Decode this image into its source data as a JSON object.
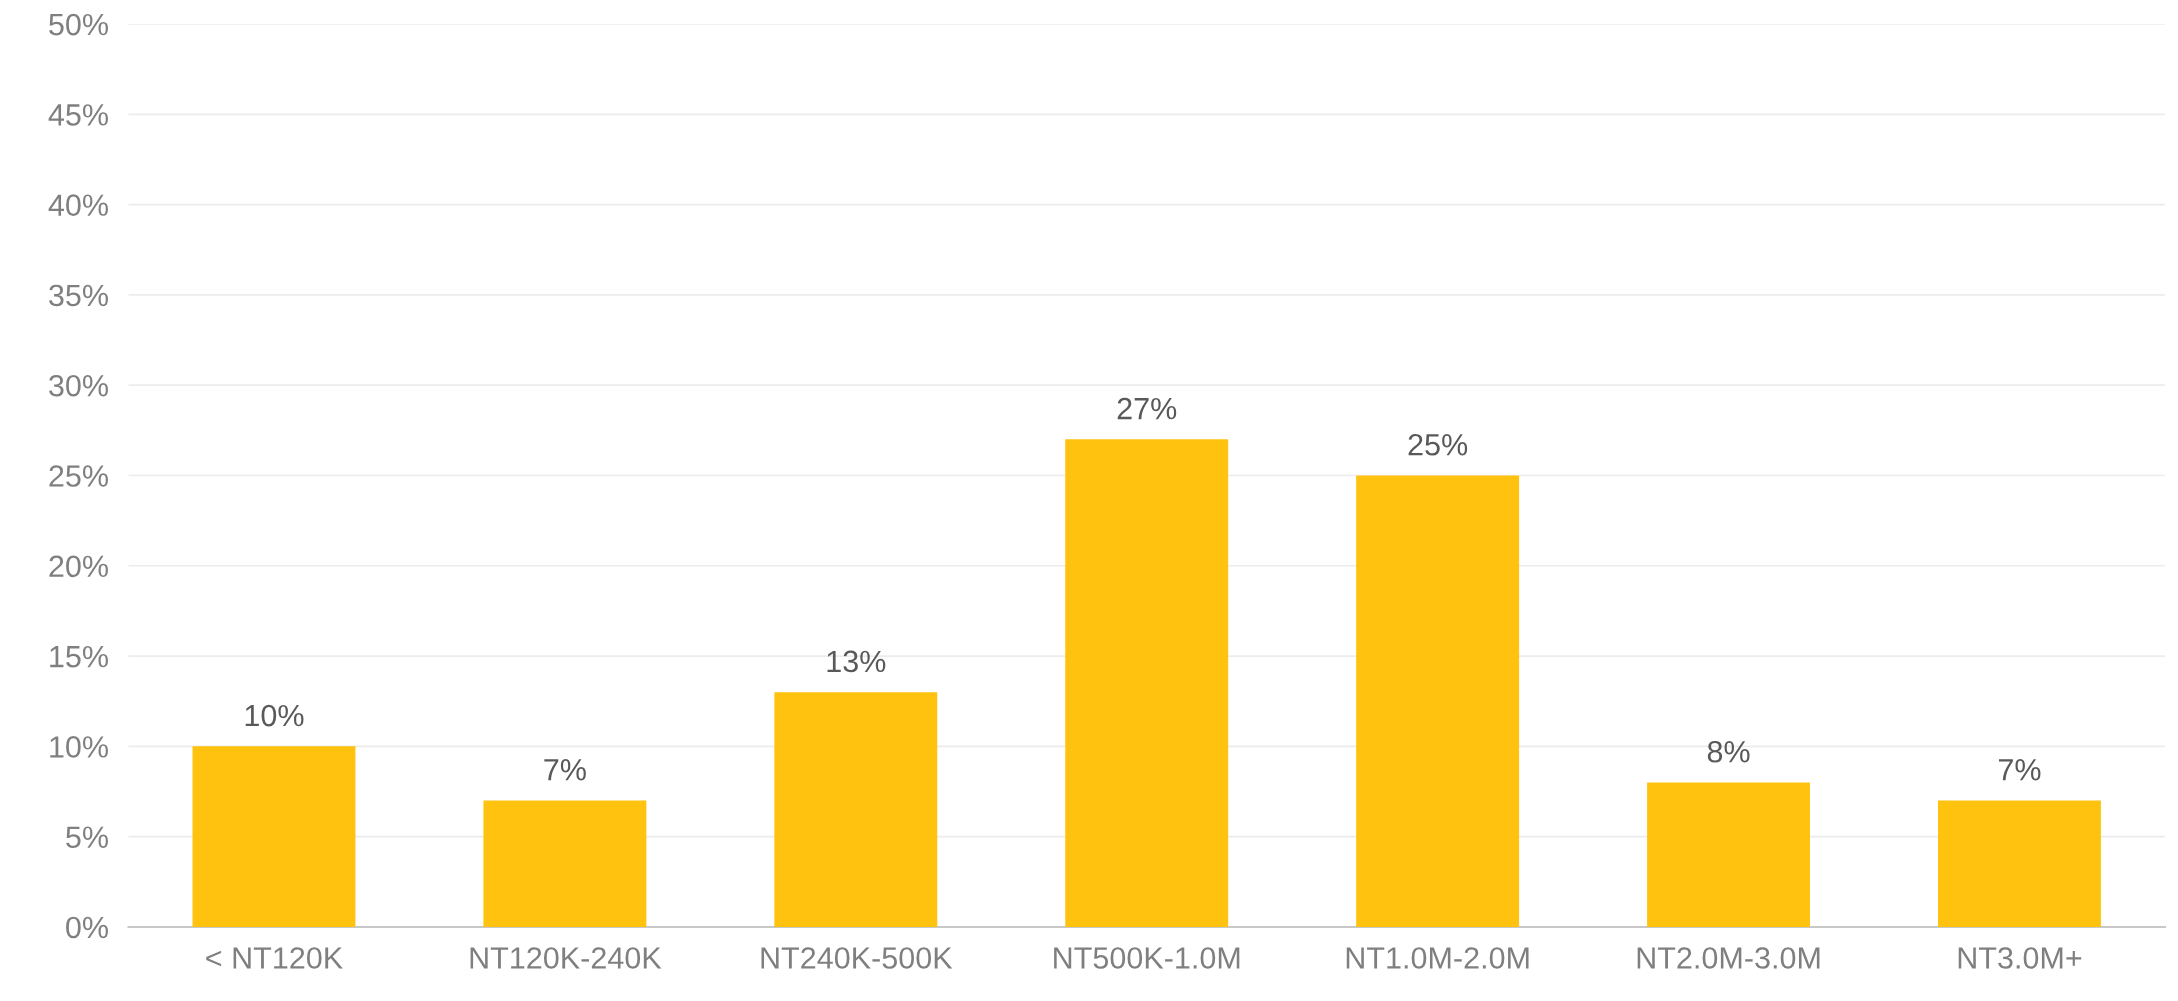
{
  "chart_data": {
    "type": "bar",
    "categories": [
      "< NT120K",
      "NT120K-240K",
      "NT240K-500K",
      "NT500K-1.0M",
      "NT1.0M-2.0M",
      "NT2.0M-3.0M",
      "NT3.0M+"
    ],
    "values": [
      10,
      7,
      13,
      27,
      25,
      8,
      7
    ],
    "color": "#ffc20e",
    "ylim": [
      0,
      50
    ],
    "yticks": [
      {
        "value": 0,
        "label": "0%"
      },
      {
        "value": 5,
        "label": "5%"
      },
      {
        "value": 10,
        "label": "10%"
      },
      {
        "value": 15,
        "label": "15%"
      },
      {
        "value": 20,
        "label": "20%"
      },
      {
        "value": 25,
        "label": "25%"
      },
      {
        "value": 30,
        "label": "30%"
      },
      {
        "value": 35,
        "label": "35%"
      },
      {
        "value": 40,
        "label": "40%"
      },
      {
        "value": 45,
        "label": "45%"
      },
      {
        "value": 50,
        "label": "50%"
      }
    ],
    "value_labels": [
      "10%",
      "7%",
      "13%",
      "27%",
      "25%",
      "8%",
      "7%"
    ],
    "grid": "y",
    "legend": false
  }
}
